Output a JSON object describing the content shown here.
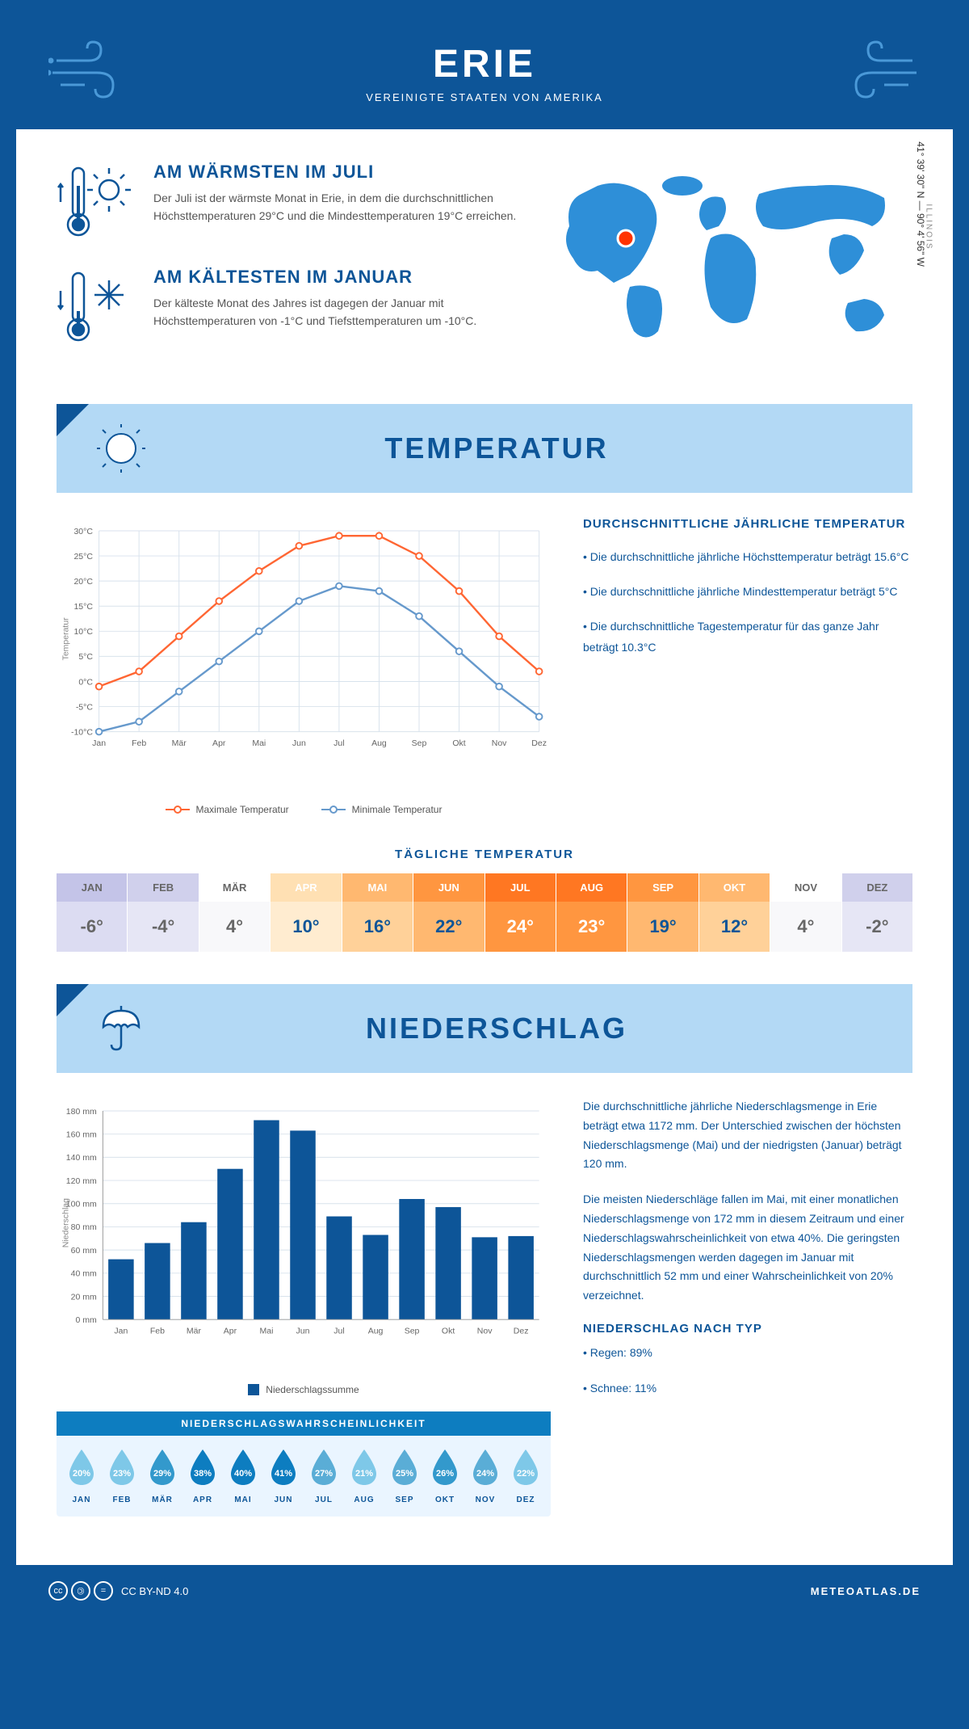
{
  "header": {
    "city": "ERIE",
    "country": "VEREINIGTE STAATEN VON AMERIKA"
  },
  "location": {
    "coords": "41° 39' 30\" N — 90° 4' 56\" W",
    "state": "ILLINOIS"
  },
  "warmest": {
    "title": "AM WÄRMSTEN IM JULI",
    "text": "Der Juli ist der wärmste Monat in Erie, in dem die durchschnittlichen Höchsttemperaturen 29°C und die Mindesttemperaturen 19°C erreichen."
  },
  "coldest": {
    "title": "AM KÄLTESTEN IM JANUAR",
    "text": "Der kälteste Monat des Jahres ist dagegen der Januar mit Höchsttemperaturen von -1°C und Tiefsttemperaturen um -10°C."
  },
  "temp_section": {
    "title": "TEMPERATUR",
    "chart": {
      "type": "line",
      "months": [
        "Jan",
        "Feb",
        "Mär",
        "Apr",
        "Mai",
        "Jun",
        "Jul",
        "Aug",
        "Sep",
        "Okt",
        "Nov",
        "Dez"
      ],
      "max_series": [
        -1,
        2,
        9,
        16,
        22,
        27,
        29,
        29,
        25,
        18,
        9,
        2
      ],
      "min_series": [
        -10,
        -8,
        -2,
        4,
        10,
        16,
        19,
        18,
        13,
        6,
        -1,
        -7
      ],
      "max_color": "#ff6633",
      "min_color": "#6699cc",
      "ylim": [
        -10,
        30
      ],
      "ytick_step": 5,
      "grid_color": "#d8e2ec",
      "background": "#ffffff",
      "y_label": "Temperatur",
      "legend_max": "Maximale Temperatur",
      "legend_min": "Minimale Temperatur"
    },
    "summary": {
      "title": "DURCHSCHNITTLICHE JÄHRLICHE TEMPERATUR",
      "b1": "• Die durchschnittliche jährliche Höchsttemperatur beträgt 15.6°C",
      "b2": "• Die durchschnittliche jährliche Mindesttemperatur beträgt 5°C",
      "b3": "• Die durchschnittliche Tagestemperatur für das ganze Jahr beträgt 10.3°C"
    }
  },
  "daily_temp": {
    "title": "TÄGLICHE TEMPERATUR",
    "months": [
      "JAN",
      "FEB",
      "MÄR",
      "APR",
      "MAI",
      "JUN",
      "JUL",
      "AUG",
      "SEP",
      "OKT",
      "NOV",
      "DEZ"
    ],
    "values": [
      "-6°",
      "-4°",
      "4°",
      "10°",
      "16°",
      "22°",
      "24°",
      "23°",
      "19°",
      "12°",
      "4°",
      "-2°"
    ],
    "bg_header": [
      "#c4c4e8",
      "#d0d0ec",
      "#ffffff",
      "#ffe0b3",
      "#ffb870",
      "#ff9640",
      "#ff7722",
      "#ff7722",
      "#ff9640",
      "#ffb870",
      "#ffffff",
      "#d0d0ec"
    ],
    "bg_value": [
      "#dcdcf2",
      "#e6e6f5",
      "#f8f8fa",
      "#ffecd0",
      "#ffd199",
      "#ffb870",
      "#ff9640",
      "#ff9640",
      "#ffb870",
      "#ffd199",
      "#f8f8fa",
      "#e6e6f5"
    ],
    "text_header": [
      "#666",
      "#666",
      "#666",
      "#fff",
      "#fff",
      "#fff",
      "#fff",
      "#fff",
      "#fff",
      "#fff",
      "#666",
      "#666"
    ],
    "text_value": [
      "#666",
      "#666",
      "#666",
      "#0d5598",
      "#0d5598",
      "#0d5598",
      "#fff",
      "#fff",
      "#0d5598",
      "#0d5598",
      "#666",
      "#666"
    ]
  },
  "precip_section": {
    "title": "NIEDERSCHLAG",
    "chart": {
      "type": "bar",
      "months": [
        "Jan",
        "Feb",
        "Mär",
        "Apr",
        "Mai",
        "Jun",
        "Jul",
        "Aug",
        "Sep",
        "Okt",
        "Nov",
        "Dez"
      ],
      "values": [
        52,
        66,
        84,
        130,
        172,
        163,
        89,
        73,
        104,
        97,
        71,
        72
      ],
      "bar_color": "#0d5598",
      "ylim": [
        0,
        180
      ],
      "ytick_step": 20,
      "grid_color": "#d8e2ec",
      "y_label": "Niederschlag",
      "y_unit": "mm",
      "legend": "Niederschlagssumme"
    },
    "text1": "Die durchschnittliche jährliche Niederschlagsmenge in Erie beträgt etwa 1172 mm. Der Unterschied zwischen der höchsten Niederschlagsmenge (Mai) und der niedrigsten (Januar) beträgt 120 mm.",
    "text2": "Die meisten Niederschläge fallen im Mai, mit einer monatlichen Niederschlagsmenge von 172 mm in diesem Zeitraum und einer Niederschlagswahrscheinlichkeit von etwa 40%. Die geringsten Niederschlagsmengen werden dagegen im Januar mit durchschnittlich 52 mm und einer Wahrscheinlichkeit von 20% verzeichnet.",
    "by_type_title": "NIEDERSCHLAG NACH TYP",
    "by_type_1": "• Regen: 89%",
    "by_type_2": "• Schnee: 11%",
    "prob": {
      "title": "NIEDERSCHLAGSWAHRSCHEINLICHKEIT",
      "months": [
        "JAN",
        "FEB",
        "MÄR",
        "APR",
        "MAI",
        "JUN",
        "JUL",
        "AUG",
        "SEP",
        "OKT",
        "NOV",
        "DEZ"
      ],
      "values": [
        "20%",
        "23%",
        "29%",
        "38%",
        "40%",
        "41%",
        "27%",
        "21%",
        "25%",
        "26%",
        "24%",
        "22%"
      ],
      "colors": [
        "#7ec8e8",
        "#7ec8e8",
        "#3399cc",
        "#0d7dc0",
        "#0d7dc0",
        "#0d7dc0",
        "#5aadd6",
        "#7ec8e8",
        "#5aadd6",
        "#3399cc",
        "#5aadd6",
        "#7ec8e8"
      ]
    }
  },
  "footer": {
    "license": "CC BY-ND 4.0",
    "site": "METEOATLAS.DE"
  }
}
